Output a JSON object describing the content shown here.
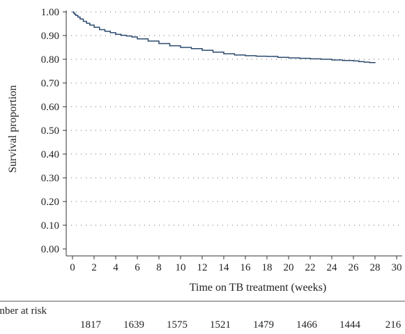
{
  "chart_data": {
    "type": "line",
    "title": "",
    "xlabel": "Time on TB treatment (weeks)",
    "ylabel": "Survival proportion",
    "xlim": [
      0,
      30
    ],
    "ylim": [
      0,
      1
    ],
    "x_ticks": [
      0,
      2,
      4,
      6,
      8,
      10,
      12,
      14,
      16,
      18,
      20,
      22,
      24,
      26,
      28,
      30
    ],
    "y_ticks": [
      0.0,
      0.1,
      0.2,
      0.3,
      0.4,
      0.5,
      0.6,
      0.7,
      0.8,
      0.9,
      1.0
    ],
    "y_tick_labels": [
      "0.00",
      "0.10",
      "0.20",
      "0.30",
      "0.40",
      "0.50",
      "0.60",
      "0.70",
      "0.80",
      "0.90",
      "1.00"
    ],
    "grid": "horizontal-dotted",
    "line_color": "#2c4a6e",
    "series": [
      {
        "x": [
          0,
          0.1,
          0.2,
          0.3,
          0.5,
          0.7,
          1.0,
          1.3,
          1.6,
          2.0,
          2.5,
          3.0,
          3.5,
          4.0,
          4.5,
          5.0,
          5.5,
          6.0,
          7.0,
          8.0,
          9.0,
          10.0,
          11.0,
          12.0,
          13.0,
          14.0,
          15.0,
          16.0,
          17.0,
          18.0,
          19.0,
          20.0,
          21.0,
          22.0,
          23.0,
          24.0,
          25.0,
          26.0,
          26.5,
          27.0,
          27.5,
          28.0
        ],
        "y": [
          1.0,
          0.995,
          0.99,
          0.985,
          0.978,
          0.97,
          0.96,
          0.952,
          0.944,
          0.935,
          0.925,
          0.918,
          0.912,
          0.905,
          0.901,
          0.898,
          0.894,
          0.886,
          0.877,
          0.866,
          0.857,
          0.85,
          0.845,
          0.838,
          0.83,
          0.823,
          0.818,
          0.815,
          0.813,
          0.812,
          0.808,
          0.806,
          0.804,
          0.802,
          0.8,
          0.797,
          0.795,
          0.793,
          0.79,
          0.788,
          0.786,
          0.784
        ]
      }
    ],
    "risk_table": {
      "title": "Number at risk",
      "times": [
        0,
        4,
        8,
        12,
        16,
        20,
        24,
        28
      ],
      "counts": [
        "1817",
        "1639",
        "1575",
        "1521",
        "1479",
        "1466",
        "1444",
        "216"
      ]
    }
  }
}
